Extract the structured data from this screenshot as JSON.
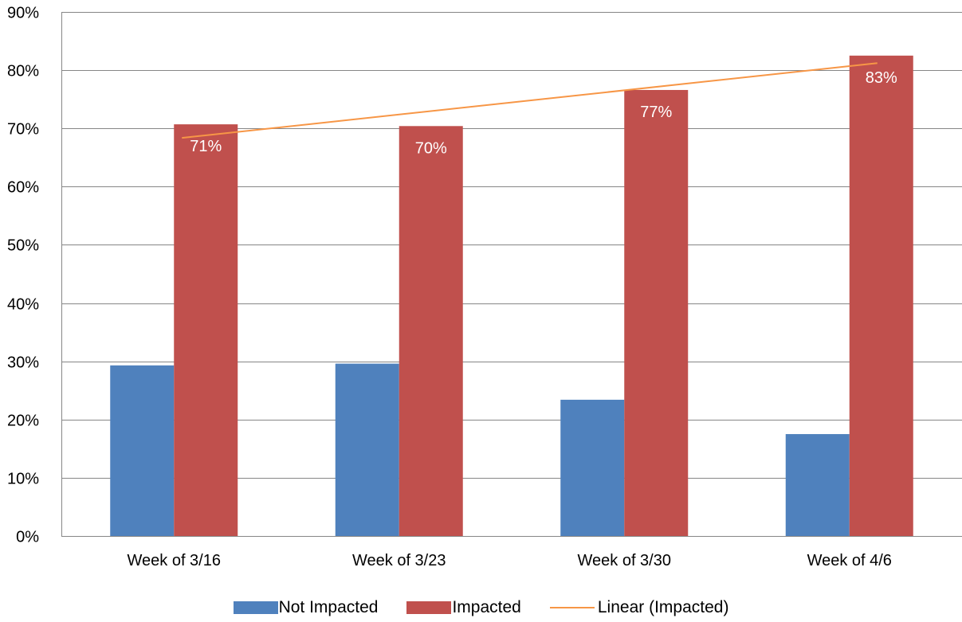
{
  "chart_data": {
    "type": "bar",
    "categories": [
      "Week of 3/16",
      "Week of 3/23",
      "Week of 3/30",
      "Week of 4/6"
    ],
    "series": [
      {
        "name": "Not Impacted",
        "values": [
          29.3,
          29.6,
          23.4,
          17.5
        ],
        "color": "#4F81BD"
      },
      {
        "name": "Impacted",
        "values": [
          70.7,
          70.4,
          76.6,
          82.5
        ],
        "color": "#C0504D",
        "data_labels": [
          "71%",
          "70%",
          "77%",
          "83%"
        ]
      }
    ],
    "trendline": {
      "name": "Linear (Impacted)",
      "of_series": "Impacted",
      "kind": "linear",
      "color": "#F79646"
    },
    "y_ticks": [
      "0%",
      "10%",
      "20%",
      "30%",
      "40%",
      "50%",
      "60%",
      "70%",
      "80%",
      "90%"
    ],
    "ylim": [
      0,
      90
    ],
    "y_step": 10,
    "grid": true,
    "legend_position": "bottom",
    "title": "",
    "xlabel": "",
    "ylabel": ""
  }
}
